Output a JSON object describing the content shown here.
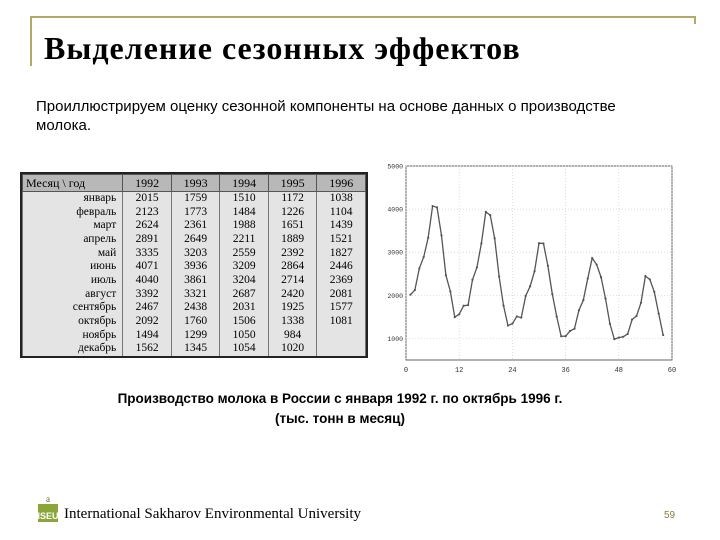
{
  "slide": {
    "title": "Выделение сезонных эффектов",
    "intro": "Проиллюстрируем оценку сезонной компоненты на основе данных о производстве молока.",
    "caption_line1": "Производство молока в России с января 1992 г. по октябрь 1996 г.",
    "caption_line2": "(тыс. тонн в месяц)",
    "footer": "International Sakharov Environmental University",
    "page_number": "59",
    "logo_letters": "ISEU"
  },
  "table": {
    "header": [
      "Месяц \\ год",
      "1992",
      "1993",
      "1994",
      "1995",
      "1996"
    ],
    "rows": [
      [
        "январь",
        "2015",
        "1759",
        "1510",
        "1172",
        "1038"
      ],
      [
        "февраль",
        "2123",
        "1773",
        "1484",
        "1226",
        "1104"
      ],
      [
        "март",
        "2624",
        "2361",
        "1988",
        "1651",
        "1439"
      ],
      [
        "апрель",
        "2891",
        "2649",
        "2211",
        "1889",
        "1521"
      ],
      [
        "май",
        "3335",
        "3203",
        "2559",
        "2392",
        "1827"
      ],
      [
        "июнь",
        "4071",
        "3936",
        "3209",
        "2864",
        "2446"
      ],
      [
        "июль",
        "4040",
        "3861",
        "3204",
        "2714",
        "2369"
      ],
      [
        "август",
        "3392",
        "3321",
        "2687",
        "2420",
        "2081"
      ],
      [
        "сентябрь",
        "2467",
        "2438",
        "2031",
        "1925",
        "1577"
      ],
      [
        "октябрь",
        "2092",
        "1760",
        "1506",
        "1338",
        "1081"
      ],
      [
        "ноябрь",
        "1494",
        "1299",
        "1050",
        "984",
        ""
      ],
      [
        "декабрь",
        "1562",
        "1345",
        "1054",
        "1020",
        ""
      ]
    ]
  },
  "chart_data": {
    "type": "line",
    "xlim": [
      0,
      60
    ],
    "ylim": [
      500,
      5000
    ],
    "x_ticks": [
      "0",
      "12",
      "24",
      "36",
      "48",
      "60"
    ],
    "y_ticks": [
      "1000",
      "2000",
      "3000",
      "4000",
      "5000"
    ],
    "grid": true,
    "x": [
      1,
      2,
      3,
      4,
      5,
      6,
      7,
      8,
      9,
      10,
      11,
      12,
      13,
      14,
      15,
      16,
      17,
      18,
      19,
      20,
      21,
      22,
      23,
      24,
      25,
      26,
      27,
      28,
      29,
      30,
      31,
      32,
      33,
      34,
      35,
      36,
      37,
      38,
      39,
      40,
      41,
      42,
      43,
      44,
      45,
      46,
      47,
      48,
      49,
      50,
      51,
      52,
      53,
      54,
      55,
      56,
      57,
      58
    ],
    "values": [
      2015,
      2123,
      2624,
      2891,
      3335,
      4071,
      4040,
      3392,
      2467,
      2092,
      1494,
      1562,
      1759,
      1773,
      2361,
      2649,
      3203,
      3936,
      3861,
      3321,
      2438,
      1760,
      1299,
      1345,
      1510,
      1484,
      1988,
      2211,
      2559,
      3209,
      3204,
      2687,
      2031,
      1506,
      1050,
      1054,
      1172,
      1226,
      1651,
      1889,
      2392,
      2864,
      2714,
      2420,
      1925,
      1338,
      984,
      1020,
      1038,
      1104,
      1439,
      1521,
      1827,
      2446,
      2369,
      2081,
      1577,
      1081
    ],
    "line_color": "#555555"
  }
}
